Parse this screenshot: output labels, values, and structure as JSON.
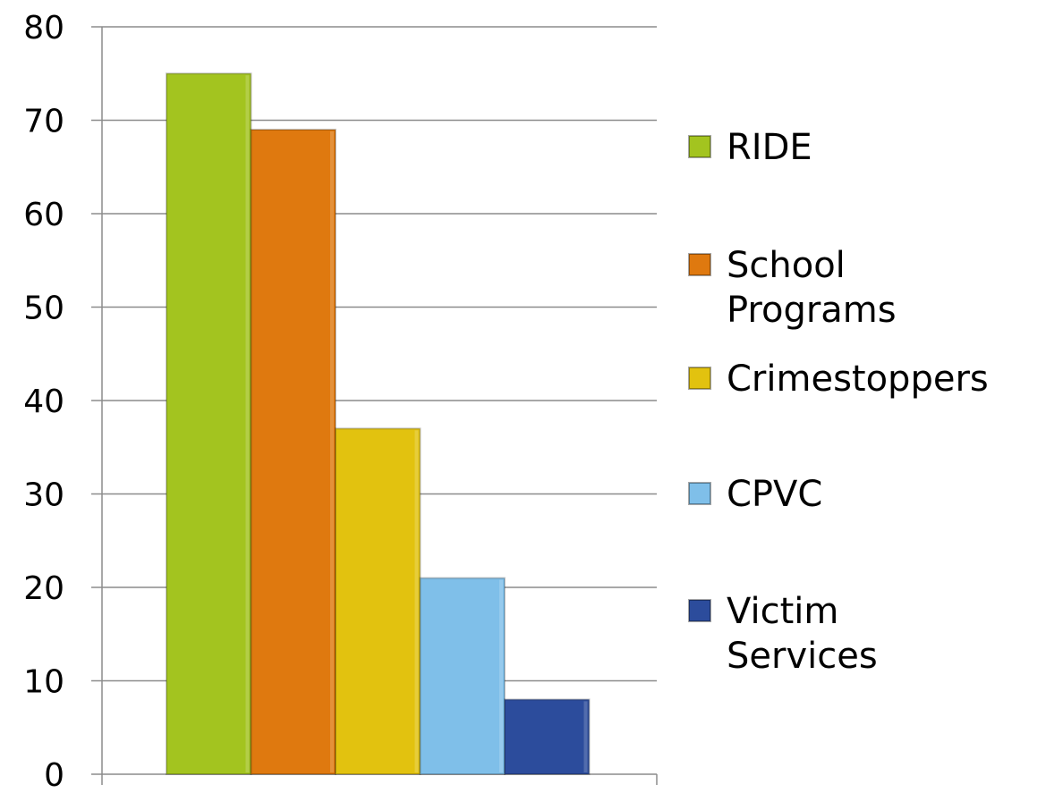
{
  "chart_data": {
    "type": "bar",
    "categories": [
      ""
    ],
    "series": [
      {
        "name": "RIDE",
        "values": [
          75
        ],
        "color": "#a3c41f"
      },
      {
        "name": "School Programs",
        "values": [
          69
        ],
        "color": "#df790f"
      },
      {
        "name": "Crimestoppers",
        "values": [
          37
        ],
        "color": "#e2c20f"
      },
      {
        "name": "CPVC",
        "values": [
          21
        ],
        "color": "#7fbfe9"
      },
      {
        "name": "Victim Services",
        "values": [
          8
        ],
        "color": "#2c4c9c"
      }
    ],
    "legend_lines": [
      [
        "RIDE"
      ],
      [
        "School",
        "Programs"
      ],
      [
        "Crimestoppers"
      ],
      [
        "CPVC"
      ],
      [
        "Victim",
        "Services"
      ]
    ],
    "ylim": [
      0,
      80
    ],
    "yticks": [
      "0",
      "10",
      "20",
      "30",
      "40",
      "50",
      "60",
      "70",
      "80"
    ],
    "grid": true,
    "legend_position": "right",
    "title": "",
    "xlabel": "",
    "ylabel": ""
  }
}
